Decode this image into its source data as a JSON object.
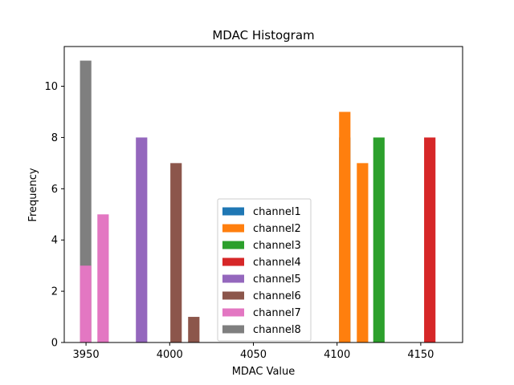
{
  "chart_data": {
    "type": "bar",
    "title": "MDAC Histogram",
    "xlabel": "MDAC Value",
    "ylabel": "Frequency",
    "xlim": [
      3937,
      4175
    ],
    "ylim": [
      0,
      11.55
    ],
    "xticks": [
      3950,
      4000,
      4050,
      4100,
      4150
    ],
    "yticks": [
      0,
      2,
      4,
      6,
      8,
      10
    ],
    "bar_width": 6.8,
    "legend_position": "lower center",
    "series": [
      {
        "name": "channel1",
        "color": "#1f77b4",
        "bars": [
          {
            "x": 4104.6,
            "y": 8
          }
        ]
      },
      {
        "name": "channel2",
        "color": "#ff7f0e",
        "bars": [
          {
            "x": 4104.6,
            "y": 9
          },
          {
            "x": 4115.2,
            "y": 7
          }
        ]
      },
      {
        "name": "channel3",
        "color": "#2ca02c",
        "bars": [
          {
            "x": 4125.0,
            "y": 8
          }
        ]
      },
      {
        "name": "channel4",
        "color": "#d62728",
        "bars": [
          {
            "x": 4155.4,
            "y": 8
          }
        ]
      },
      {
        "name": "channel5",
        "color": "#9467bd",
        "bars": [
          {
            "x": 3983.2,
            "y": 8
          }
        ]
      },
      {
        "name": "channel6",
        "color": "#8c564b",
        "bars": [
          {
            "x": 4003.8,
            "y": 7
          },
          {
            "x": 4014.4,
            "y": 1
          }
        ]
      },
      {
        "name": "channel7",
        "color": "#e377c2",
        "bars": [
          {
            "x": 3960.2,
            "y": 5
          }
        ]
      },
      {
        "name": "channel8",
        "color": "#7f7f7f",
        "bars": [
          {
            "x": 3949.8,
            "y": 11
          }
        ]
      },
      {
        "name": "channel7",
        "color": "#e377c2",
        "bars": [
          {
            "x": 3949.8,
            "y": 3
          }
        ],
        "overlay": true
      }
    ],
    "legend": [
      "channel1",
      "channel2",
      "channel3",
      "channel4",
      "channel5",
      "channel6",
      "channel7",
      "channel8"
    ]
  }
}
